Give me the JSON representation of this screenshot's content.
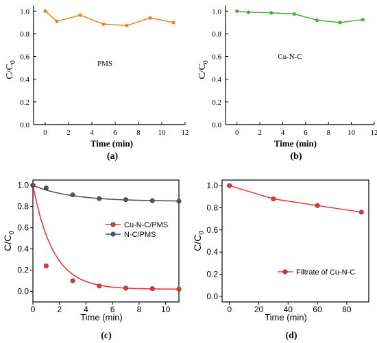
{
  "chart_data": [
    {
      "panel_label": "(a)",
      "type": "line",
      "xlabel": "Time (min)",
      "ylabel_main": "C/C",
      "ylabel_sub": "0",
      "xlim": [
        -1,
        12
      ],
      "ylim": [
        0,
        1.05
      ],
      "x_ticks": [
        0,
        2,
        4,
        6,
        8,
        10,
        12
      ],
      "y_ticks": [
        "0.0",
        "0.2",
        "0.4",
        "0.6",
        "0.8",
        "1.0"
      ],
      "annotation": "PMS",
      "series": [
        {
          "color": "#f07f1c",
          "x": [
            0,
            1,
            3,
            5,
            7,
            9,
            11
          ],
          "y": [
            1.0,
            0.91,
            0.965,
            0.885,
            0.873,
            0.94,
            0.9
          ]
        }
      ]
    },
    {
      "panel_label": "(b)",
      "type": "line",
      "xlabel": "Time (min)",
      "ylabel_main": "C/C",
      "ylabel_sub": "0",
      "xlim": [
        -1,
        12
      ],
      "ylim": [
        0,
        1.05
      ],
      "x_ticks": [
        0,
        2,
        4,
        6,
        8,
        10,
        12
      ],
      "y_ticks": [
        "0.0",
        "0.2",
        "0.4",
        "0.6",
        "0.8",
        "1.0"
      ],
      "annotation": "Cu-N-C",
      "series": [
        {
          "color": "#3bb62a",
          "x": [
            0,
            1,
            3,
            5,
            7,
            9,
            11
          ],
          "y": [
            1.0,
            0.99,
            0.985,
            0.975,
            0.92,
            0.9,
            0.925
          ]
        }
      ]
    },
    {
      "panel_label": "(c)",
      "type": "scatter-fit",
      "xlabel": "Time (min)",
      "ylabel_main": "C/C",
      "ylabel_sub": "0",
      "xlim": [
        0,
        11
      ],
      "ylim": [
        -0.1,
        1.05
      ],
      "x_ticks": [
        0,
        2,
        4,
        6,
        8,
        10
      ],
      "y_ticks": [
        "0.0",
        "0.2",
        "0.4",
        "0.6",
        "0.8",
        "1.0"
      ],
      "legend_position": "center-right",
      "series": [
        {
          "name": "Cu-N-C/PMS",
          "color": "#ee3535",
          "x": [
            0,
            1,
            3,
            5,
            7,
            9,
            11
          ],
          "y": [
            1.0,
            0.24,
            0.1,
            0.05,
            0.03,
            0.025,
            0.02
          ],
          "fit_k": 0.65,
          "fit_c": 0.02
        },
        {
          "name": "N-C/PMS",
          "color": "#555555",
          "x": [
            0,
            1,
            3,
            5,
            7,
            9,
            11
          ],
          "y": [
            1.0,
            0.975,
            0.91,
            0.875,
            0.865,
            0.855,
            0.85
          ],
          "fit_k": 0.35,
          "fit_c": 0.85
        }
      ]
    },
    {
      "panel_label": "(d)",
      "type": "line",
      "xlabel": "Time (min)",
      "ylabel_main": "C/C",
      "ylabel_sub": "0",
      "xlim": [
        -5,
        95
      ],
      "ylim": [
        -0.05,
        1.05
      ],
      "x_ticks": [
        0,
        20,
        40,
        60,
        80
      ],
      "y_ticks": [
        "0.0",
        "0.2",
        "0.4",
        "0.6",
        "0.8",
        "1.0"
      ],
      "legend_position": "bottom-right",
      "series": [
        {
          "name": "Filtrate of Cu-N-C",
          "color": "#ee3535",
          "x": [
            0,
            30,
            60,
            90
          ],
          "y": [
            1.0,
            0.88,
            0.82,
            0.76
          ]
        }
      ]
    }
  ]
}
